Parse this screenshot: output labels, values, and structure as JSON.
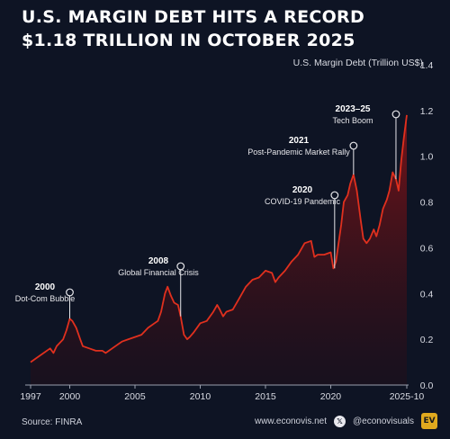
{
  "title": {
    "line1": "U.S. Margin Debt Hits a Record",
    "line2": "$1.18 Trillion in October 2025"
  },
  "footer": {
    "source": "Source: FINRA",
    "website": "www.econovis.net",
    "social": "@econovisuals",
    "brand_mark": "EV"
  },
  "colors": {
    "background": "#0e1424",
    "line": "#e0301e",
    "fill_top": "#8a1418",
    "annotation": "#e6e6ea"
  },
  "chart_data": {
    "type": "area",
    "ylabel": "U.S. Margin Debt (Trillion US$)",
    "ylim": [
      0,
      1.4
    ],
    "yticks": [
      "0.0",
      "0.2",
      "0.4",
      "0.6",
      "0.8",
      "1.0",
      "1.2",
      "1.4"
    ],
    "xlim": [
      1997,
      2025.83
    ],
    "xticks": [
      "1997",
      "2000",
      "2005",
      "2010",
      "2015",
      "2020",
      "2025-10"
    ],
    "grid": false,
    "series": [
      {
        "x": [
          1997.0,
          1997.5,
          1998.0,
          1998.5,
          1998.75,
          1999.0,
          1999.5,
          1999.75,
          2000.0,
          2000.2,
          2000.5,
          2000.8,
          2001.0,
          2001.5,
          2002.0,
          2002.5,
          2002.75,
          2003.0,
          2003.5,
          2004.0,
          2004.5,
          2005.0,
          2005.5,
          2006.0,
          2006.5,
          2006.75,
          2007.0,
          2007.3,
          2007.5,
          2007.75,
          2008.0,
          2008.3,
          2008.5,
          2008.75,
          2009.0,
          2009.2,
          2009.5,
          2010.0,
          2010.5,
          2011.0,
          2011.3,
          2011.5,
          2011.75,
          2012.0,
          2012.5,
          2013.0,
          2013.5,
          2014.0,
          2014.5,
          2015.0,
          2015.5,
          2015.75,
          2016.0,
          2016.5,
          2017.0,
          2017.5,
          2018.0,
          2018.5,
          2018.75,
          2019.0,
          2019.5,
          2020.0,
          2020.2,
          2020.4,
          2020.6,
          2020.8,
          2021.0,
          2021.3,
          2021.5,
          2021.75,
          2022.0,
          2022.3,
          2022.5,
          2022.75,
          2023.0,
          2023.3,
          2023.5,
          2023.75,
          2024.0,
          2024.3,
          2024.5,
          2024.75,
          2025.0,
          2025.2,
          2025.4,
          2025.6,
          2025.83
        ],
        "y": [
          0.1,
          0.12,
          0.14,
          0.16,
          0.14,
          0.17,
          0.2,
          0.24,
          0.29,
          0.28,
          0.25,
          0.2,
          0.17,
          0.16,
          0.15,
          0.15,
          0.14,
          0.15,
          0.17,
          0.19,
          0.2,
          0.21,
          0.22,
          0.25,
          0.27,
          0.28,
          0.32,
          0.4,
          0.43,
          0.39,
          0.36,
          0.35,
          0.3,
          0.22,
          0.2,
          0.21,
          0.23,
          0.27,
          0.28,
          0.32,
          0.35,
          0.33,
          0.3,
          0.32,
          0.33,
          0.38,
          0.43,
          0.46,
          0.47,
          0.5,
          0.49,
          0.45,
          0.47,
          0.5,
          0.54,
          0.57,
          0.62,
          0.63,
          0.56,
          0.57,
          0.57,
          0.58,
          0.51,
          0.54,
          0.62,
          0.7,
          0.8,
          0.83,
          0.88,
          0.92,
          0.85,
          0.72,
          0.64,
          0.62,
          0.64,
          0.68,
          0.65,
          0.7,
          0.77,
          0.81,
          0.85,
          0.93,
          0.9,
          0.85,
          0.98,
          1.08,
          1.18
        ]
      }
    ],
    "annotations": [
      {
        "x": 2000.0,
        "y_anchor": 0.29,
        "year": "2000",
        "label": "Dot-Com Bubble"
      },
      {
        "x": 2008.5,
        "y_anchor": 0.3,
        "year": "2008",
        "label": "Global Financial Crisis"
      },
      {
        "x": 2020.3,
        "y_anchor": 0.51,
        "year": "2020",
        "label": "COVID-19 Pandemic"
      },
      {
        "x": 2021.75,
        "y_anchor": 0.92,
        "year": "2021",
        "label": "Post-Pandemic Market Rally"
      },
      {
        "x": 2025.0,
        "y_anchor": 0.9,
        "year": "2023–25",
        "label": "Tech Boom"
      }
    ]
  }
}
